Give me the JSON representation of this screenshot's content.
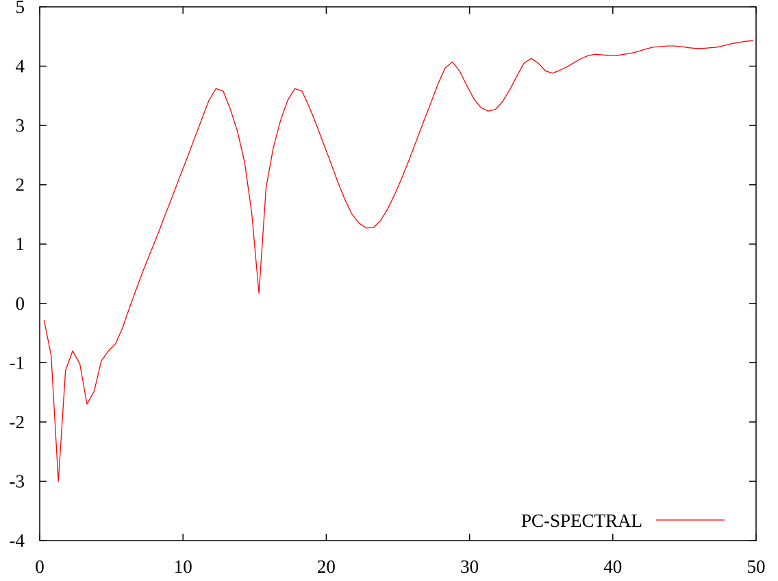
{
  "chart_data": {
    "type": "line",
    "title": "",
    "xlabel": "",
    "ylabel": "",
    "xlim": [
      0,
      50
    ],
    "ylim": [
      -4,
      5
    ],
    "x_ticks": [
      0,
      10,
      20,
      30,
      40,
      50
    ],
    "y_ticks": [
      -4,
      -3,
      -2,
      -1,
      0,
      1,
      2,
      3,
      4,
      5
    ],
    "grid": false,
    "legend_position": "bottom-right",
    "series": [
      {
        "name": "PC-SPECTRAL",
        "color": "#ff0000",
        "points": [
          [
            0.3,
            -0.28
          ],
          [
            0.8,
            -0.88
          ],
          [
            1.3,
            -3.0
          ],
          [
            1.8,
            -1.13
          ],
          [
            2.3,
            -0.8
          ],
          [
            2.8,
            -1.02
          ],
          [
            3.3,
            -1.7
          ],
          [
            3.8,
            -1.48
          ],
          [
            4.3,
            -0.97
          ],
          [
            4.8,
            -0.8
          ],
          [
            5.3,
            -0.68
          ],
          [
            5.8,
            -0.4
          ],
          [
            6.3,
            -0.05
          ],
          [
            6.8,
            0.28
          ],
          [
            7.3,
            0.6
          ],
          [
            7.8,
            0.9
          ],
          [
            8.3,
            1.2
          ],
          [
            8.8,
            1.52
          ],
          [
            9.3,
            1.83
          ],
          [
            9.8,
            2.15
          ],
          [
            10.3,
            2.46
          ],
          [
            10.8,
            2.78
          ],
          [
            11.3,
            3.1
          ],
          [
            11.8,
            3.42
          ],
          [
            12.3,
            3.62
          ],
          [
            12.8,
            3.58
          ],
          [
            13.3,
            3.28
          ],
          [
            13.8,
            2.9
          ],
          [
            14.3,
            2.38
          ],
          [
            14.8,
            1.52
          ],
          [
            15.3,
            0.17
          ],
          [
            15.8,
            1.95
          ],
          [
            16.3,
            2.62
          ],
          [
            16.8,
            3.08
          ],
          [
            17.3,
            3.42
          ],
          [
            17.8,
            3.62
          ],
          [
            18.3,
            3.58
          ],
          [
            18.8,
            3.32
          ],
          [
            19.3,
            3.02
          ],
          [
            19.8,
            2.7
          ],
          [
            20.3,
            2.38
          ],
          [
            20.8,
            2.05
          ],
          [
            21.3,
            1.75
          ],
          [
            21.8,
            1.5
          ],
          [
            22.3,
            1.35
          ],
          [
            22.8,
            1.27
          ],
          [
            23.3,
            1.28
          ],
          [
            23.8,
            1.4
          ],
          [
            24.3,
            1.6
          ],
          [
            24.8,
            1.85
          ],
          [
            25.3,
            2.13
          ],
          [
            25.8,
            2.43
          ],
          [
            26.3,
            2.75
          ],
          [
            26.8,
            3.07
          ],
          [
            27.3,
            3.38
          ],
          [
            27.8,
            3.7
          ],
          [
            28.3,
            3.97
          ],
          [
            28.8,
            4.07
          ],
          [
            29.3,
            3.92
          ],
          [
            29.8,
            3.68
          ],
          [
            30.3,
            3.45
          ],
          [
            30.8,
            3.3
          ],
          [
            31.3,
            3.24
          ],
          [
            31.8,
            3.27
          ],
          [
            32.3,
            3.4
          ],
          [
            32.8,
            3.6
          ],
          [
            33.3,
            3.83
          ],
          [
            33.8,
            4.05
          ],
          [
            34.3,
            4.13
          ],
          [
            34.8,
            4.05
          ],
          [
            35.3,
            3.92
          ],
          [
            35.8,
            3.88
          ],
          [
            36.3,
            3.93
          ],
          [
            36.8,
            3.99
          ],
          [
            37.3,
            4.06
          ],
          [
            37.8,
            4.13
          ],
          [
            38.3,
            4.18
          ],
          [
            38.8,
            4.2
          ],
          [
            39.3,
            4.19
          ],
          [
            39.8,
            4.18
          ],
          [
            40.3,
            4.18
          ],
          [
            40.8,
            4.2
          ],
          [
            41.3,
            4.22
          ],
          [
            41.8,
            4.25
          ],
          [
            42.3,
            4.29
          ],
          [
            42.8,
            4.32
          ],
          [
            43.3,
            4.33
          ],
          [
            43.8,
            4.34
          ],
          [
            44.3,
            4.34
          ],
          [
            44.8,
            4.33
          ],
          [
            45.3,
            4.31
          ],
          [
            45.8,
            4.3
          ],
          [
            46.3,
            4.3
          ],
          [
            46.8,
            4.31
          ],
          [
            47.3,
            4.32
          ],
          [
            47.8,
            4.35
          ],
          [
            48.3,
            4.38
          ],
          [
            48.8,
            4.4
          ],
          [
            49.3,
            4.42
          ],
          [
            49.8,
            4.43
          ]
        ]
      }
    ]
  }
}
